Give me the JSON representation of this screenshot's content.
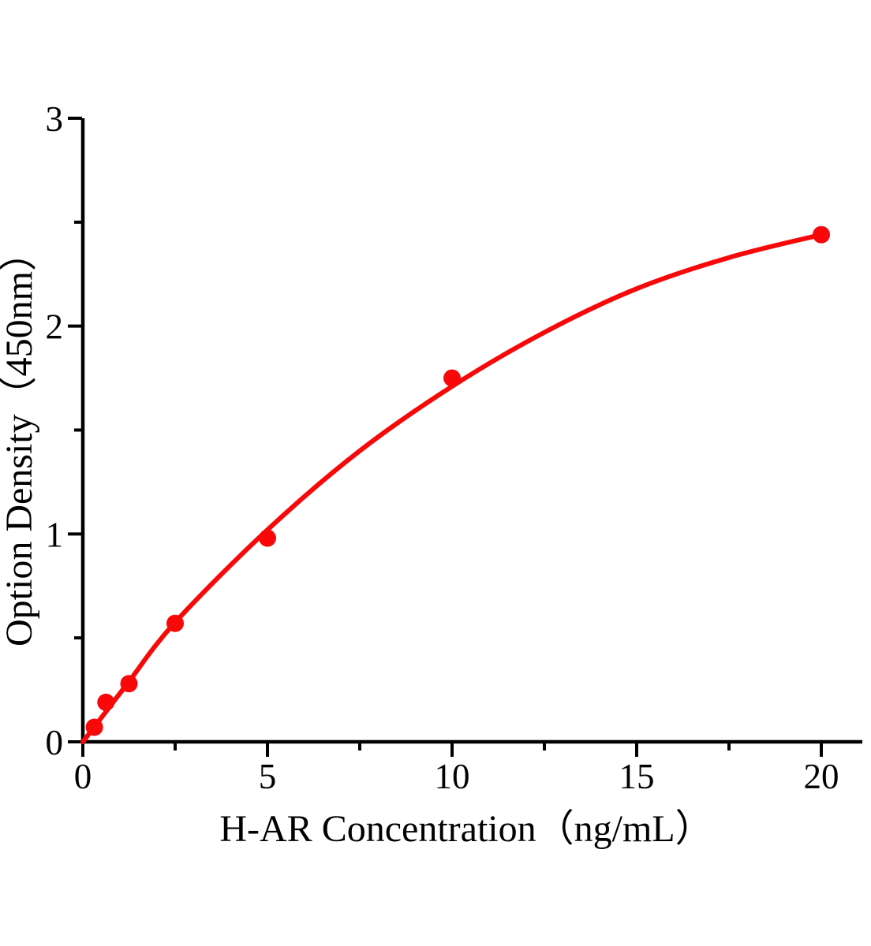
{
  "chart_data": {
    "type": "scatter",
    "title": "",
    "xlabel": "H-AR Concentration（ng/mL）",
    "ylabel": "Option Density（450nm）",
    "xlim": [
      0,
      20
    ],
    "ylim": [
      0,
      3
    ],
    "x_major_ticks": [
      0,
      5,
      10,
      15,
      20
    ],
    "x_minor_ticks": [
      2.5,
      7.5,
      12.5,
      17.5
    ],
    "y_major_ticks": [
      0,
      1,
      2,
      3
    ],
    "y_minor_ticks": [
      0.5,
      1.5,
      2.5
    ],
    "grid": false,
    "legend": null,
    "points": [
      {
        "x": 0.3125,
        "y": 0.07
      },
      {
        "x": 0.625,
        "y": 0.19
      },
      {
        "x": 1.25,
        "y": 0.28
      },
      {
        "x": 2.5,
        "y": 0.57
      },
      {
        "x": 5,
        "y": 0.98
      },
      {
        "x": 10,
        "y": 1.75
      },
      {
        "x": 20,
        "y": 2.44
      }
    ],
    "curve": [
      {
        "x": 0,
        "y": 0
      },
      {
        "x": 0.3125,
        "y": 0.072
      },
      {
        "x": 0.625,
        "y": 0.145
      },
      {
        "x": 1.25,
        "y": 0.29
      },
      {
        "x": 2.5,
        "y": 0.575
      },
      {
        "x": 5,
        "y": 1.02
      },
      {
        "x": 7.5,
        "y": 1.4
      },
      {
        "x": 10,
        "y": 1.71
      },
      {
        "x": 12.5,
        "y": 1.97
      },
      {
        "x": 15,
        "y": 2.18
      },
      {
        "x": 17.5,
        "y": 2.33
      },
      {
        "x": 20,
        "y": 2.44
      }
    ],
    "series_color": "#f80808",
    "axis_color": "#000000",
    "background": "#ffffff",
    "marker_radius": 11,
    "line_width": 6
  }
}
